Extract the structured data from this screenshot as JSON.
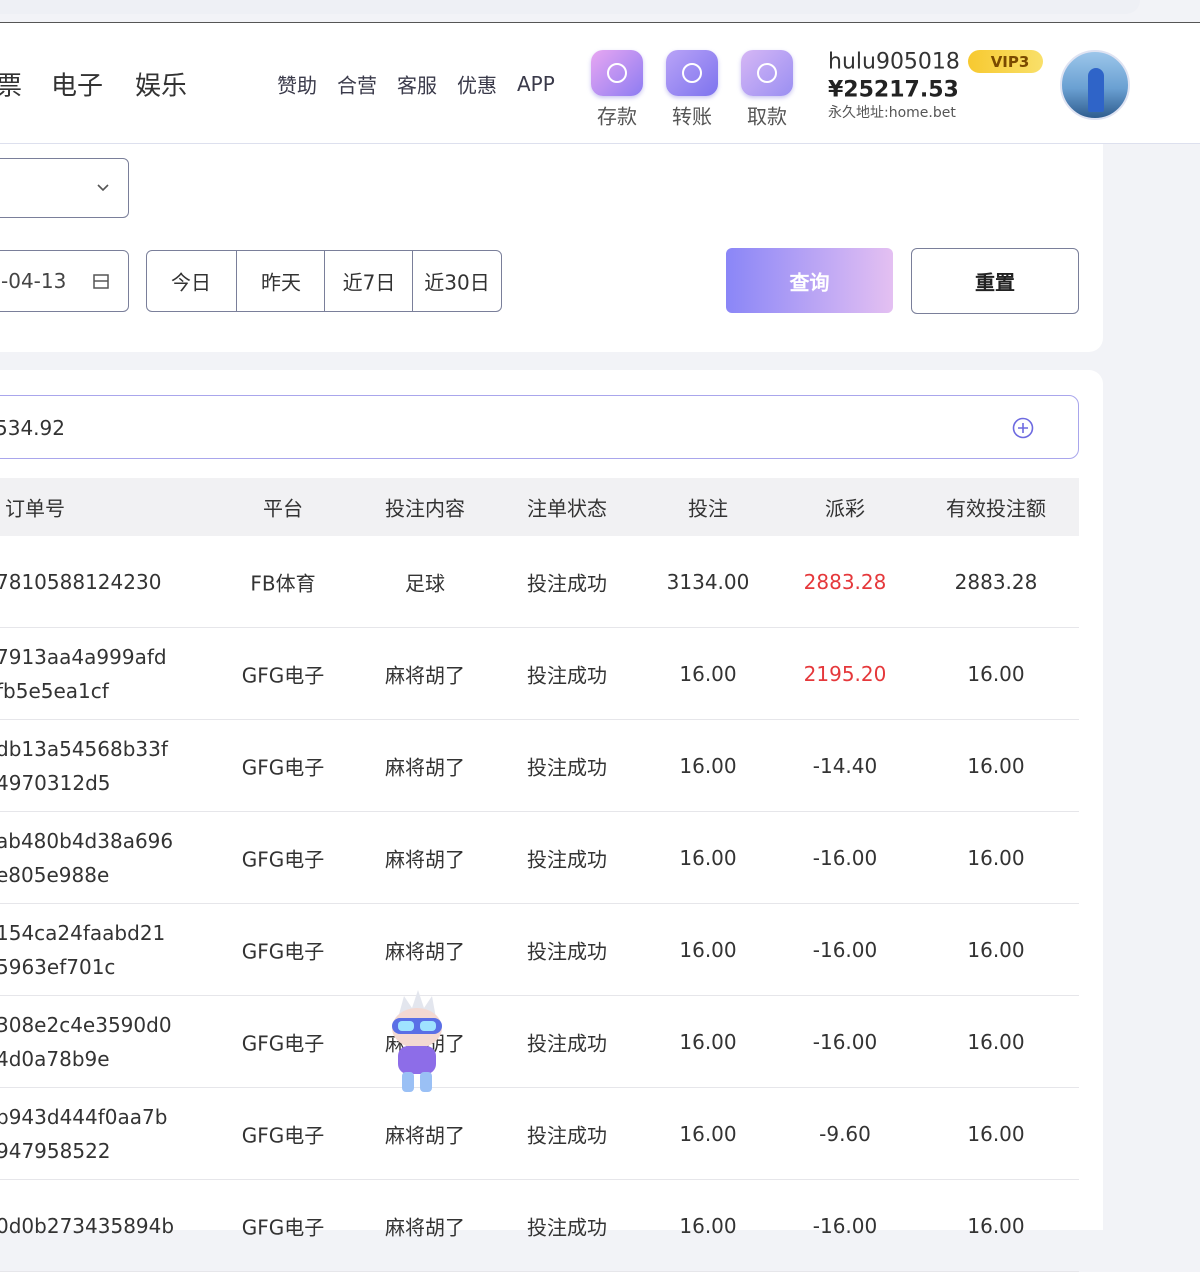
{
  "nav": {
    "main": [
      "票",
      "电子",
      "娱乐"
    ],
    "links": [
      "赞助",
      "合营",
      "客服",
      "优惠",
      "APP"
    ],
    "actions": [
      "存款",
      "转账",
      "取款"
    ]
  },
  "user": {
    "name": "hulu905018",
    "vip": "VIP3",
    "balance": "¥25217.53",
    "address": "永久地址:home.bet"
  },
  "filters": {
    "date": "-04-13",
    "ranges": [
      "今日",
      "昨天",
      "近7日",
      "近30日"
    ],
    "query": "查询",
    "reset": "重置"
  },
  "summary": "534.92",
  "table": {
    "headers": [
      "订单号",
      "平台",
      "投注内容",
      "注单状态",
      "投注",
      "派彩",
      "有效投注额"
    ],
    "rows": [
      [
        [
          "7810588124230"
        ],
        "FB体育",
        "足球",
        "投注成功",
        "3134.00",
        "2883.28",
        "2883.28"
      ],
      [
        [
          "7913aa4a999afd",
          "fb5e5ea1cf"
        ],
        "GFG电子",
        "麻将胡了",
        "投注成功",
        "16.00",
        "2195.20",
        "16.00"
      ],
      [
        [
          "db13a54568b33f",
          "4970312d5"
        ],
        "GFG电子",
        "麻将胡了",
        "投注成功",
        "16.00",
        "-14.40",
        "16.00"
      ],
      [
        [
          "ab480b4d38a696",
          "e805e988e"
        ],
        "GFG电子",
        "麻将胡了",
        "投注成功",
        "16.00",
        "-16.00",
        "16.00"
      ],
      [
        [
          "154ca24faabd21",
          "5963ef701c"
        ],
        "GFG电子",
        "麻将胡了",
        "投注成功",
        "16.00",
        "-16.00",
        "16.00"
      ],
      [
        [
          "308e2c4e3590d0",
          "4d0a78b9e"
        ],
        "GFG电子",
        "麻将胡了",
        "投注成功",
        "16.00",
        "-16.00",
        "16.00"
      ],
      [
        [
          "b943d444f0aa7b",
          "947958522"
        ],
        "GFG电子",
        "麻将胡了",
        "投注成功",
        "16.00",
        "-9.60",
        "16.00"
      ],
      [
        [
          "0d0b273435894b"
        ],
        "GFG电子",
        "麻将胡了",
        "投注成功",
        "16.00",
        "-16.00",
        "16.00"
      ]
    ]
  }
}
